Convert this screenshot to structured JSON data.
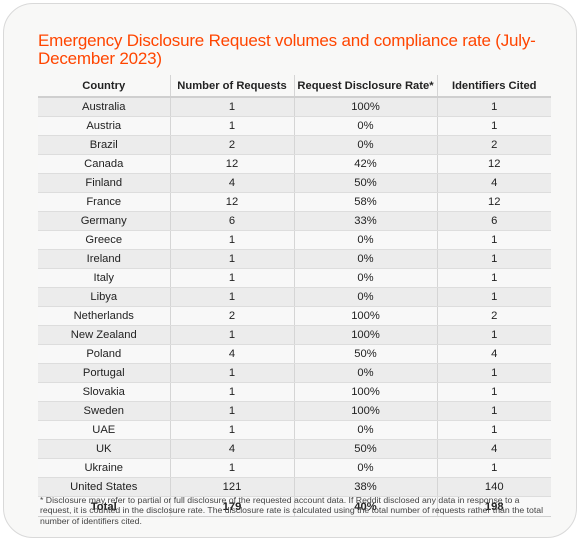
{
  "title": "Emergency Disclosure Request volumes and compliance rate (July-December 2023)",
  "table": {
    "headers": [
      "Country",
      "Number of Requests",
      "Request Disclosure Rate*",
      "Identifiers Cited"
    ],
    "rows": [
      [
        "Australia",
        "1",
        "100%",
        "1"
      ],
      [
        "Austria",
        "1",
        "0%",
        "1"
      ],
      [
        "Brazil",
        "2",
        "0%",
        "2"
      ],
      [
        "Canada",
        "12",
        "42%",
        "12"
      ],
      [
        "Finland",
        "4",
        "50%",
        "4"
      ],
      [
        "France",
        "12",
        "58%",
        "12"
      ],
      [
        "Germany",
        "6",
        "33%",
        "6"
      ],
      [
        "Greece",
        "1",
        "0%",
        "1"
      ],
      [
        "Ireland",
        "1",
        "0%",
        "1"
      ],
      [
        "Italy",
        "1",
        "0%",
        "1"
      ],
      [
        "Libya",
        "1",
        "0%",
        "1"
      ],
      [
        "Netherlands",
        "2",
        "100%",
        "2"
      ],
      [
        "New Zealand",
        "1",
        "100%",
        "1"
      ],
      [
        "Poland",
        "4",
        "50%",
        "4"
      ],
      [
        "Portugal",
        "1",
        "0%",
        "1"
      ],
      [
        "Slovakia",
        "1",
        "100%",
        "1"
      ],
      [
        "Sweden",
        "1",
        "100%",
        "1"
      ],
      [
        "UAE",
        "1",
        "0%",
        "1"
      ],
      [
        "UK",
        "4",
        "50%",
        "4"
      ],
      [
        "Ukraine",
        "1",
        "0%",
        "1"
      ],
      [
        "United States",
        "121",
        "38%",
        "140"
      ]
    ],
    "total": [
      "Total",
      "179",
      "40%",
      "198"
    ]
  },
  "footnote": "* Disclosure may refer to partial or full disclosure of the requested account data.  If Reddit disclosed any data in response to a request, it is counted in the disclosure rate.  The disclosure rate is calculated using the total number of requests rather than the total number of identifiers cited.",
  "colors": {
    "title": "#ff4500",
    "card_background": "#f8f8f7",
    "stripe": "#ececec"
  }
}
